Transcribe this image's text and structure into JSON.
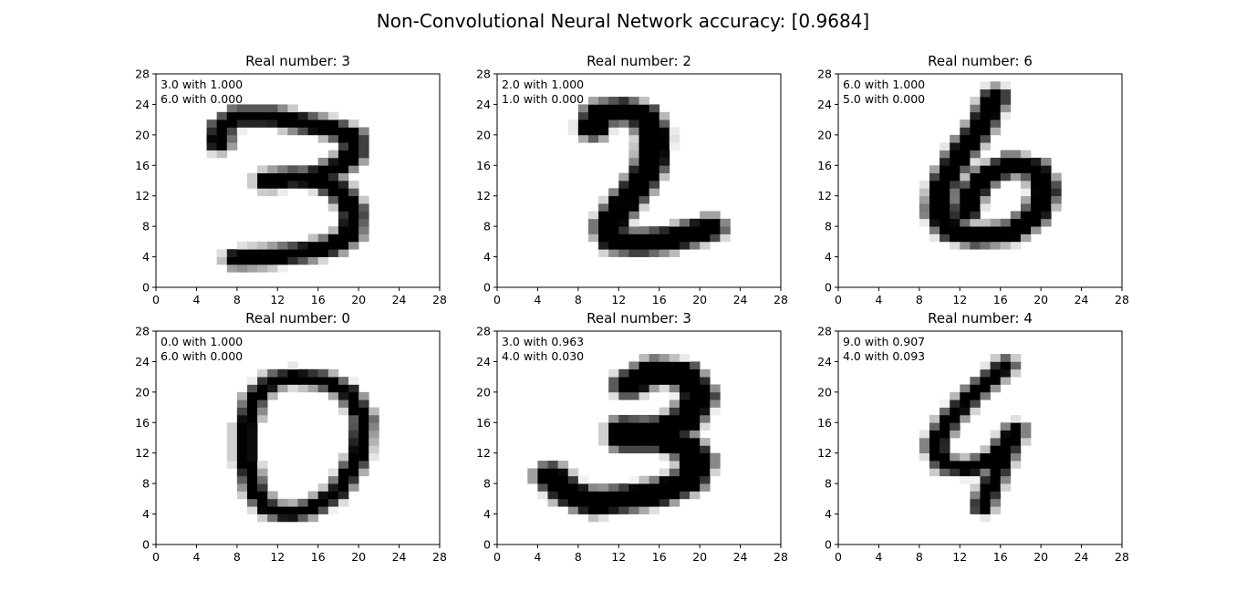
{
  "figure": {
    "title": "Non-Convolutional Neural Network accuracy: [0.9684]"
  },
  "chart_data": [
    {
      "type": "image",
      "title": "Real number: 3",
      "xlim": [
        0,
        28
      ],
      "ylim": [
        0,
        28
      ],
      "xticks": [
        0,
        4,
        8,
        12,
        16,
        20,
        24,
        28
      ],
      "yticks": [
        0,
        4,
        8,
        12,
        16,
        20,
        24,
        28
      ],
      "annotations": [
        "3.0 with 1.000",
        "6.0 with 0.000"
      ],
      "colormap": "gray_r",
      "strokes": [
        [
          [
            6.2,
            19.0
          ],
          [
            6.5,
            21.0
          ],
          [
            8.0,
            22.4
          ],
          [
            11.5,
            22.4
          ]
        ],
        [
          [
            11.5,
            22.4
          ],
          [
            14.5,
            21.6
          ],
          [
            17.5,
            20.8
          ],
          [
            19.5,
            19.7
          ],
          [
            19.5,
            17.5
          ],
          [
            18.0,
            15.8
          ],
          [
            15.5,
            14.5
          ]
        ],
        [
          [
            11.0,
            14.0
          ],
          [
            13.5,
            14.4
          ],
          [
            16.0,
            14.2
          ],
          [
            18.2,
            12.6
          ],
          [
            19.5,
            10.0
          ],
          [
            19.2,
            7.0
          ],
          [
            17.5,
            5.5
          ],
          [
            14.5,
            4.6
          ],
          [
            11.0,
            4.0
          ],
          [
            8.0,
            3.8
          ]
        ]
      ],
      "stroke_width": 1.35
    },
    {
      "type": "image",
      "title": "Real number: 2",
      "xlim": [
        0,
        28
      ],
      "ylim": [
        0,
        28
      ],
      "xticks": [
        0,
        4,
        8,
        12,
        16,
        20,
        24,
        28
      ],
      "yticks": [
        0,
        4,
        8,
        12,
        16,
        20,
        24,
        28
      ],
      "annotations": [
        "2.0 with 1.000",
        "1.0 with 0.000"
      ],
      "colormap": "gray_r",
      "strokes": [
        [
          [
            9.5,
            21.0
          ],
          [
            10.0,
            22.8
          ],
          [
            12.5,
            23.2
          ],
          [
            14.5,
            22.5
          ],
          [
            15.5,
            20.0
          ],
          [
            15.3,
            16.5
          ],
          [
            14.0,
            13.5
          ],
          [
            12.2,
            10.5
          ],
          [
            11.0,
            8.0
          ],
          [
            11.5,
            6.2
          ],
          [
            14.0,
            5.8
          ],
          [
            17.0,
            6.3
          ],
          [
            19.5,
            7.2
          ],
          [
            21.0,
            7.8
          ]
        ]
      ],
      "stroke_width": 2.0
    },
    {
      "type": "image",
      "title": "Real number: 6",
      "xlim": [
        0,
        28
      ],
      "ylim": [
        0,
        28
      ],
      "xticks": [
        0,
        4,
        8,
        12,
        16,
        20,
        24,
        28
      ],
      "yticks": [
        0,
        4,
        8,
        12,
        16,
        20,
        24,
        28
      ],
      "annotations": [
        "6.0 with 1.000",
        "5.0 with 0.000"
      ],
      "colormap": "gray_r",
      "strokes": [
        [
          [
            15.5,
            25.0
          ],
          [
            14.0,
            21.0
          ],
          [
            12.0,
            17.5
          ],
          [
            10.3,
            13.5
          ],
          [
            9.8,
            10.0
          ],
          [
            11.0,
            7.5
          ],
          [
            13.5,
            6.7
          ],
          [
            17.0,
            7.2
          ],
          [
            19.5,
            9.5
          ],
          [
            20.5,
            12.8
          ],
          [
            19.5,
            15.5
          ],
          [
            17.0,
            16.2
          ],
          [
            14.5,
            14.5
          ],
          [
            13.0,
            12.0
          ],
          [
            12.5,
            9.8
          ]
        ]
      ],
      "stroke_width": 1.55
    },
    {
      "type": "image",
      "title": "Real number: 0",
      "xlim": [
        0,
        28
      ],
      "ylim": [
        0,
        28
      ],
      "xticks": [
        0,
        4,
        8,
        12,
        16,
        20,
        24,
        28
      ],
      "yticks": [
        0,
        4,
        8,
        12,
        16,
        20,
        24,
        28
      ],
      "annotations": [
        "0.0 with 1.000",
        "6.0 with 0.000"
      ],
      "colormap": "gray_r",
      "strokes": [
        [
          [
            13.5,
            22.0
          ],
          [
            16.5,
            21.6
          ],
          [
            19.0,
            20.0
          ],
          [
            20.5,
            16.5
          ],
          [
            20.0,
            11.5
          ],
          [
            18.0,
            7.0
          ],
          [
            15.5,
            4.8
          ],
          [
            13.0,
            4.0
          ],
          [
            11.0,
            4.8
          ],
          [
            9.8,
            7.0
          ],
          [
            8.9,
            11.0
          ],
          [
            8.9,
            15.5
          ],
          [
            9.8,
            19.5
          ],
          [
            11.5,
            21.5
          ],
          [
            13.5,
            22.0
          ]
        ]
      ],
      "stroke_width": 1.0
    },
    {
      "type": "image",
      "title": "Real number: 3",
      "xlim": [
        0,
        28
      ],
      "ylim": [
        0,
        28
      ],
      "xticks": [
        0,
        4,
        8,
        12,
        16,
        20,
        24,
        28
      ],
      "yticks": [
        0,
        4,
        8,
        12,
        16,
        20,
        24,
        28
      ],
      "annotations": [
        "3.0 with 0.963",
        "4.0 with 0.030"
      ],
      "colormap": "gray_r",
      "strokes": [
        [
          [
            13.0,
            21.0
          ],
          [
            15.5,
            22.8
          ],
          [
            18.5,
            22.3
          ],
          [
            20.0,
            19.5
          ],
          [
            18.5,
            16.2
          ],
          [
            15.5,
            14.8
          ],
          [
            12.5,
            15.0
          ]
        ],
        [
          [
            12.5,
            14.0
          ],
          [
            16.0,
            14.0
          ],
          [
            18.5,
            13.0
          ],
          [
            19.8,
            11.0
          ],
          [
            19.0,
            8.5
          ],
          [
            16.0,
            6.8
          ],
          [
            12.5,
            6.0
          ],
          [
            9.5,
            5.5
          ],
          [
            7.0,
            6.8
          ],
          [
            5.3,
            9.0
          ]
        ]
      ],
      "stroke_width": 2.2
    },
    {
      "type": "image",
      "title": "Real number: 4",
      "xlim": [
        0,
        28
      ],
      "ylim": [
        0,
        28
      ],
      "xticks": [
        0,
        4,
        8,
        12,
        16,
        20,
        24,
        28
      ],
      "yticks": [
        0,
        4,
        8,
        12,
        16,
        20,
        24,
        28
      ],
      "annotations": [
        "9.0 with 0.907",
        "4.0 with 0.093"
      ],
      "colormap": "gray_r",
      "strokes": [
        [
          [
            16.5,
            23.5
          ],
          [
            13.5,
            20.0
          ],
          [
            11.0,
            16.5
          ],
          [
            9.5,
            13.0
          ],
          [
            10.5,
            10.5
          ],
          [
            13.0,
            10.0
          ],
          [
            15.5,
            11.5
          ],
          [
            17.5,
            15.0
          ]
        ],
        [
          [
            17.5,
            15.0
          ],
          [
            16.5,
            12.0
          ],
          [
            15.3,
            8.5
          ],
          [
            14.2,
            5.0
          ]
        ]
      ],
      "stroke_width": 1.05
    }
  ]
}
